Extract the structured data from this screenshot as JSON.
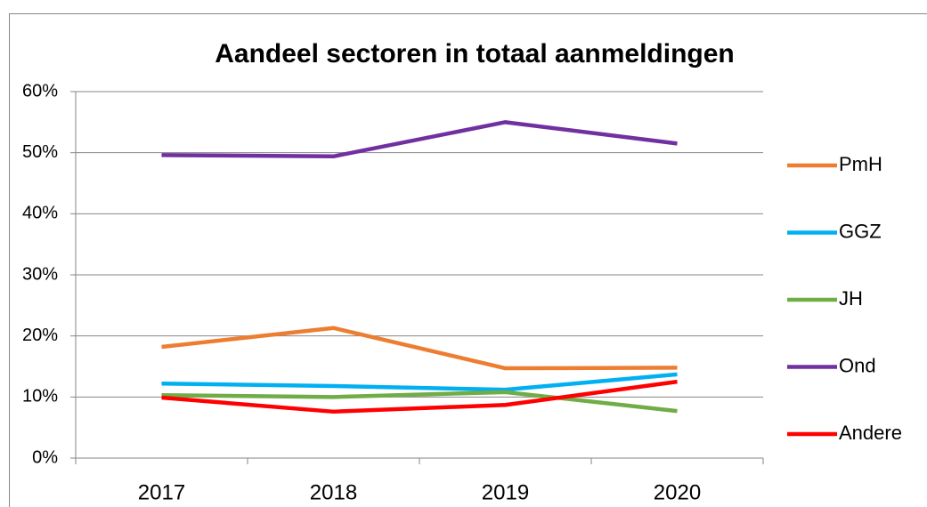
{
  "chart_data": {
    "type": "line",
    "title": "Aandeel sectoren in totaal aanmeldingen",
    "categories": [
      "2017",
      "2018",
      "2019",
      "2020"
    ],
    "series": [
      {
        "name": "PmH",
        "color": "#ed7d31",
        "values": [
          18.2,
          21.3,
          14.7,
          14.8
        ]
      },
      {
        "name": "GGZ",
        "color": "#00b0f0",
        "values": [
          12.2,
          11.8,
          11.2,
          13.7
        ]
      },
      {
        "name": "JH",
        "color": "#70ad47",
        "values": [
          10.3,
          10.0,
          10.8,
          7.7
        ]
      },
      {
        "name": "Ond",
        "color": "#7030a0",
        "values": [
          49.6,
          49.4,
          55.0,
          51.5
        ]
      },
      {
        "name": "Andere",
        "color": "#ff0000",
        "values": [
          9.9,
          7.6,
          8.7,
          12.5
        ]
      }
    ],
    "ylim": [
      0,
      60
    ],
    "yticks": [
      {
        "value": 0,
        "label": "0%"
      },
      {
        "value": 10,
        "label": "10%"
      },
      {
        "value": 20,
        "label": "20%"
      },
      {
        "value": 30,
        "label": "30%"
      },
      {
        "value": 40,
        "label": "40%"
      },
      {
        "value": 50,
        "label": "50%"
      },
      {
        "value": 60,
        "label": "60%"
      }
    ],
    "grid": true,
    "legend": "right"
  }
}
